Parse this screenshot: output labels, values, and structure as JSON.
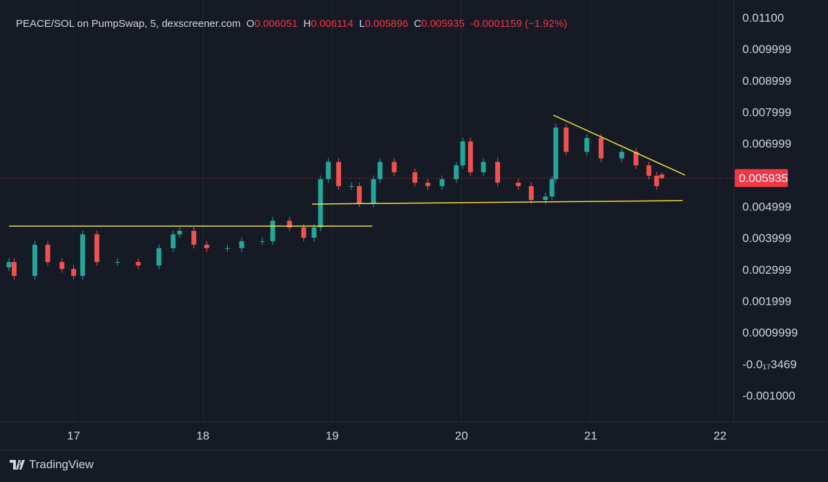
{
  "chart_data": {
    "type": "candlestick",
    "title": "PEACE/SOL on PumpSwap, 5, dexscreener.com",
    "ohlc_labels": [
      "O",
      "H",
      "L",
      "C"
    ],
    "change": -0.0001159,
    "change_percent": "(−1.92%)",
    "source": "TradingView",
    "up_color": "#26a69a",
    "down_color": "#ef5350",
    "trendline_color": "#f2e33c",
    "price_line_color": "#f23645",
    "grid": true,
    "xlim": [
      16.5,
      22.109
    ],
    "xticks": [
      17,
      18,
      19,
      20,
      21,
      22
    ],
    "ylim": [
      -0.00181,
      0.01159
    ],
    "yticks": [
      {
        "value": 0.011,
        "label": "0.01100"
      },
      0.009999,
      0.008999,
      0.007999,
      0.006999,
      0.004999,
      0.003999,
      0.002999,
      0.001999,
      0.0009999,
      {
        "value": -3.469e-18,
        "label": "-0.0₁₇3469"
      },
      {
        "value": -0.001,
        "label": "-0.001000"
      }
    ],
    "x": [
      16.5,
      16.54,
      16.7,
      16.8,
      16.91,
      17.0,
      17.07,
      17.18,
      17.34,
      17.5,
      17.66,
      17.77,
      17.82,
      17.93,
      18.03,
      18.19,
      18.3,
      18.46,
      18.54,
      18.67,
      18.78,
      18.86,
      18.91,
      18.97,
      19.05,
      19.15,
      19.21,
      19.32,
      19.37,
      19.48,
      19.64,
      19.74,
      19.85,
      19.96,
      20.01,
      20.07,
      20.17,
      20.28,
      20.44,
      20.54,
      20.65,
      20.7,
      20.73,
      20.81,
      20.97,
      21.08,
      21.24,
      21.35,
      21.45,
      21.51,
      21.55
    ],
    "open": [
      0.0031,
      0.00327,
      0.00283,
      0.00382,
      0.00327,
      0.00305,
      0.00283,
      0.00415,
      0.00327,
      0.00327,
      0.00316,
      0.00371,
      0.00415,
      0.00426,
      0.00382,
      0.00371,
      0.00371,
      0.00393,
      0.00393,
      0.00458,
      0.00437,
      0.00404,
      0.00437,
      0.0059,
      0.00645,
      0.00568,
      0.00568,
      0.00513,
      0.0059,
      0.00645,
      0.00612,
      0.00579,
      0.00568,
      0.0059,
      0.00634,
      0.0071,
      0.00612,
      0.00645,
      0.00579,
      0.00568,
      0.00524,
      0.00535,
      0.0059,
      0.00754,
      0.00677,
      0.00721,
      0.00656,
      0.00677,
      0.00634,
      0.00601,
      0.006051
    ],
    "high": [
      0.00339,
      0.00339,
      0.00394,
      0.00394,
      0.00339,
      0.00317,
      0.00427,
      0.00427,
      0.00339,
      0.00339,
      0.00383,
      0.00427,
      0.00438,
      0.00438,
      0.00394,
      0.00383,
      0.00405,
      0.00405,
      0.0047,
      0.0047,
      0.00449,
      0.00449,
      0.00602,
      0.00657,
      0.00657,
      0.0058,
      0.0058,
      0.00602,
      0.00657,
      0.00657,
      0.00624,
      0.00591,
      0.00602,
      0.00646,
      0.00722,
      0.00722,
      0.00657,
      0.00657,
      0.00591,
      0.0058,
      0.00547,
      0.00602,
      0.00766,
      0.00766,
      0.00733,
      0.00733,
      0.00689,
      0.00689,
      0.00646,
      0.00613,
      0.006114
    ],
    "low": [
      0.00298,
      0.00271,
      0.00271,
      0.00315,
      0.00293,
      0.00271,
      0.00271,
      0.00315,
      0.00315,
      0.00304,
      0.00304,
      0.00359,
      0.00403,
      0.0037,
      0.00359,
      0.00359,
      0.00359,
      0.00381,
      0.00381,
      0.00425,
      0.00392,
      0.00392,
      0.00425,
      0.00578,
      0.00556,
      0.00556,
      0.00501,
      0.00501,
      0.00578,
      0.006,
      0.00567,
      0.00556,
      0.00556,
      0.00578,
      0.00622,
      0.006,
      0.006,
      0.00567,
      0.00556,
      0.00512,
      0.00512,
      0.00523,
      0.00578,
      0.00665,
      0.00665,
      0.00644,
      0.00644,
      0.00622,
      0.00589,
      0.00556,
      0.005896
    ],
    "close": [
      0.00327,
      0.00283,
      0.00382,
      0.00327,
      0.00305,
      0.00283,
      0.00415,
      0.00327,
      0.00327,
      0.00316,
      0.00371,
      0.00415,
      0.00426,
      0.00382,
      0.00371,
      0.00371,
      0.00393,
      0.00393,
      0.00458,
      0.00437,
      0.00404,
      0.00437,
      0.0059,
      0.00645,
      0.00568,
      0.00568,
      0.00513,
      0.0059,
      0.00645,
      0.00612,
      0.00579,
      0.00568,
      0.0059,
      0.00634,
      0.0071,
      0.00612,
      0.00645,
      0.00579,
      0.00568,
      0.00524,
      0.00535,
      0.0059,
      0.00754,
      0.00677,
      0.00721,
      0.00656,
      0.00677,
      0.00634,
      0.00601,
      0.00568,
      0.005935
    ],
    "trendlines": [
      {
        "x": [
          16.5,
          19.31
        ],
        "y": [
          0.00441,
          0.00441
        ]
      },
      {
        "x": [
          18.845,
          21.71
        ],
        "y": [
          0.00511,
          0.00522
        ]
      },
      {
        "x": [
          20.71,
          21.73
        ],
        "y": [
          0.007934,
          0.00603
        ]
      }
    ]
  }
}
